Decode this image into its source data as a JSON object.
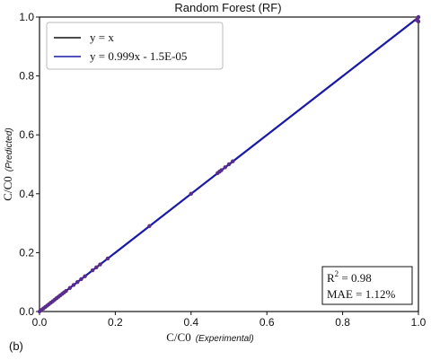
{
  "chart_data": {
    "type": "scatter",
    "title": "Random Forest (RF)",
    "xlabel": "C/C0",
    "xlabel_sub": "(Experimental)",
    "ylabel": "C/C0",
    "ylabel_sub": "(Predicted)",
    "xlim": [
      0.0,
      1.0
    ],
    "ylim": [
      0.0,
      1.0
    ],
    "x_ticks": [
      0.0,
      0.2,
      0.4,
      0.6,
      0.8,
      1.0
    ],
    "y_ticks": [
      0.0,
      0.2,
      0.4,
      0.6,
      0.8,
      1.0
    ],
    "x_tick_labels": [
      "0.0",
      "0.2",
      "0.4",
      "0.6",
      "0.8",
      "1.0"
    ],
    "y_tick_labels": [
      "0.0",
      "0.2",
      "0.4",
      "0.6",
      "0.8",
      "1.0"
    ],
    "grid": false,
    "legend": {
      "placement": "top-left",
      "entries": [
        {
          "label": "y = x",
          "color": "#111111"
        },
        {
          "label": "y = 0.999x - 1.5E-05",
          "color": "#1a1aa8"
        }
      ]
    },
    "lines": [
      {
        "slope": 1.0,
        "intercept": 0.0,
        "color": "#111111"
      },
      {
        "slope": 0.999,
        "intercept": -1.5e-05,
        "color": "#1a1aa8"
      }
    ],
    "point_color": "#5a2d8c",
    "points": [
      [
        0.0,
        0.0
      ],
      [
        0.005,
        0.005
      ],
      [
        0.01,
        0.01
      ],
      [
        0.015,
        0.015
      ],
      [
        0.02,
        0.02
      ],
      [
        0.025,
        0.025
      ],
      [
        0.03,
        0.03
      ],
      [
        0.035,
        0.035
      ],
      [
        0.04,
        0.04
      ],
      [
        0.045,
        0.045
      ],
      [
        0.05,
        0.05
      ],
      [
        0.055,
        0.055
      ],
      [
        0.06,
        0.06
      ],
      [
        0.065,
        0.065
      ],
      [
        0.07,
        0.07
      ],
      [
        0.08,
        0.08
      ],
      [
        0.09,
        0.09
      ],
      [
        0.1,
        0.1
      ],
      [
        0.11,
        0.11
      ],
      [
        0.12,
        0.12
      ],
      [
        0.14,
        0.14
      ],
      [
        0.15,
        0.15
      ],
      [
        0.16,
        0.16
      ],
      [
        0.18,
        0.18
      ],
      [
        0.29,
        0.29
      ],
      [
        0.4,
        0.4
      ],
      [
        0.47,
        0.47
      ],
      [
        0.475,
        0.475
      ],
      [
        0.48,
        0.48
      ],
      [
        0.49,
        0.49
      ],
      [
        0.5,
        0.5
      ],
      [
        0.51,
        0.51
      ],
      [
        0.995,
        0.99
      ],
      [
        1.0,
        1.0
      ],
      [
        1.0,
        0.985
      ]
    ],
    "stats": {
      "r2_label": "R",
      "r2_exp": "2",
      "r2_value": " = 0.98",
      "mae": "MAE = 1.12%",
      "placement": "bottom-right"
    }
  },
  "panel_label": "(b)"
}
